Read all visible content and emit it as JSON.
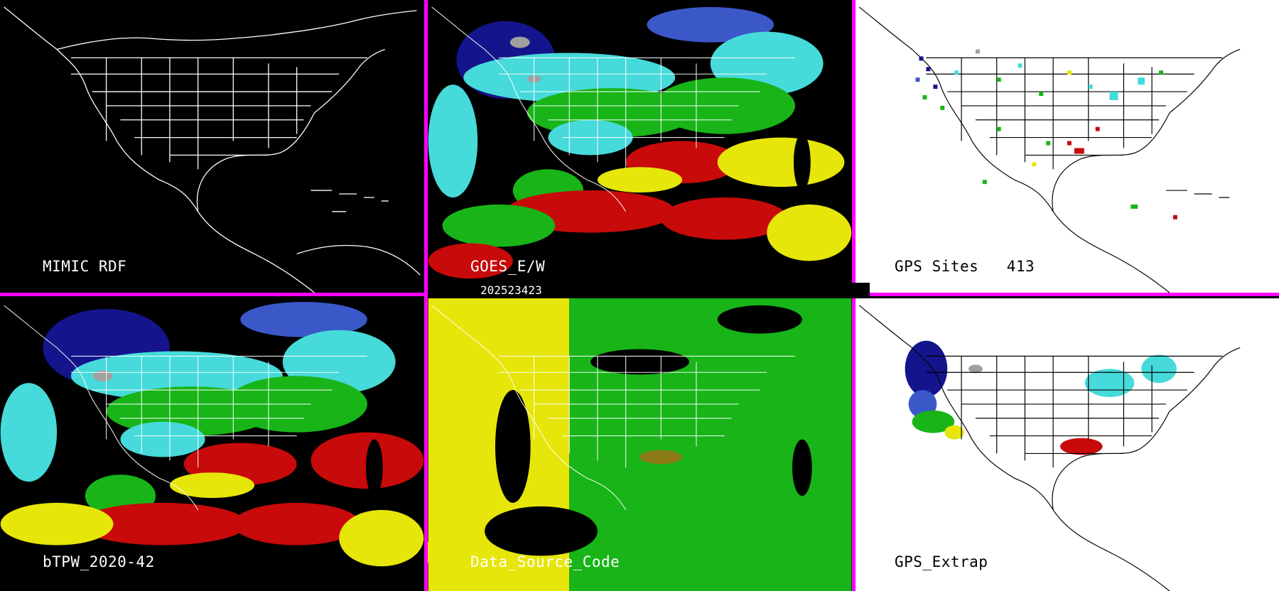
{
  "panels": [
    {
      "id": "mimic-rdf",
      "label": "MIMIC RDF",
      "theme": "dark",
      "content": "map outline only"
    },
    {
      "id": "goes-ew",
      "label": "GOES_E/W",
      "theme": "dark",
      "content": "TPW field"
    },
    {
      "id": "gps-sites",
      "label": "GPS Sites",
      "count": "413",
      "theme": "light",
      "content": "GPS site markers"
    },
    {
      "id": "btpw",
      "label": "bTPW_2020-42",
      "theme": "dark",
      "content": "TPW field"
    },
    {
      "id": "data-source",
      "label": "Data_Source_Code",
      "theme": "dark",
      "content": "source code field"
    },
    {
      "id": "gps-extrap",
      "label": "GPS_Extrap",
      "theme": "light",
      "content": "extrapolated GPS field"
    }
  ],
  "timestamp": "202523423",
  "colors": {
    "divider": "#ff00ff",
    "dark_blue": "#14148c",
    "blue": "#3a58c8",
    "cyan": "#46dada",
    "green": "#18b418",
    "yellow": "#e6e60a",
    "red": "#c80a0a",
    "gray": "#a0a0a0",
    "purple": "#8c1ec8"
  }
}
